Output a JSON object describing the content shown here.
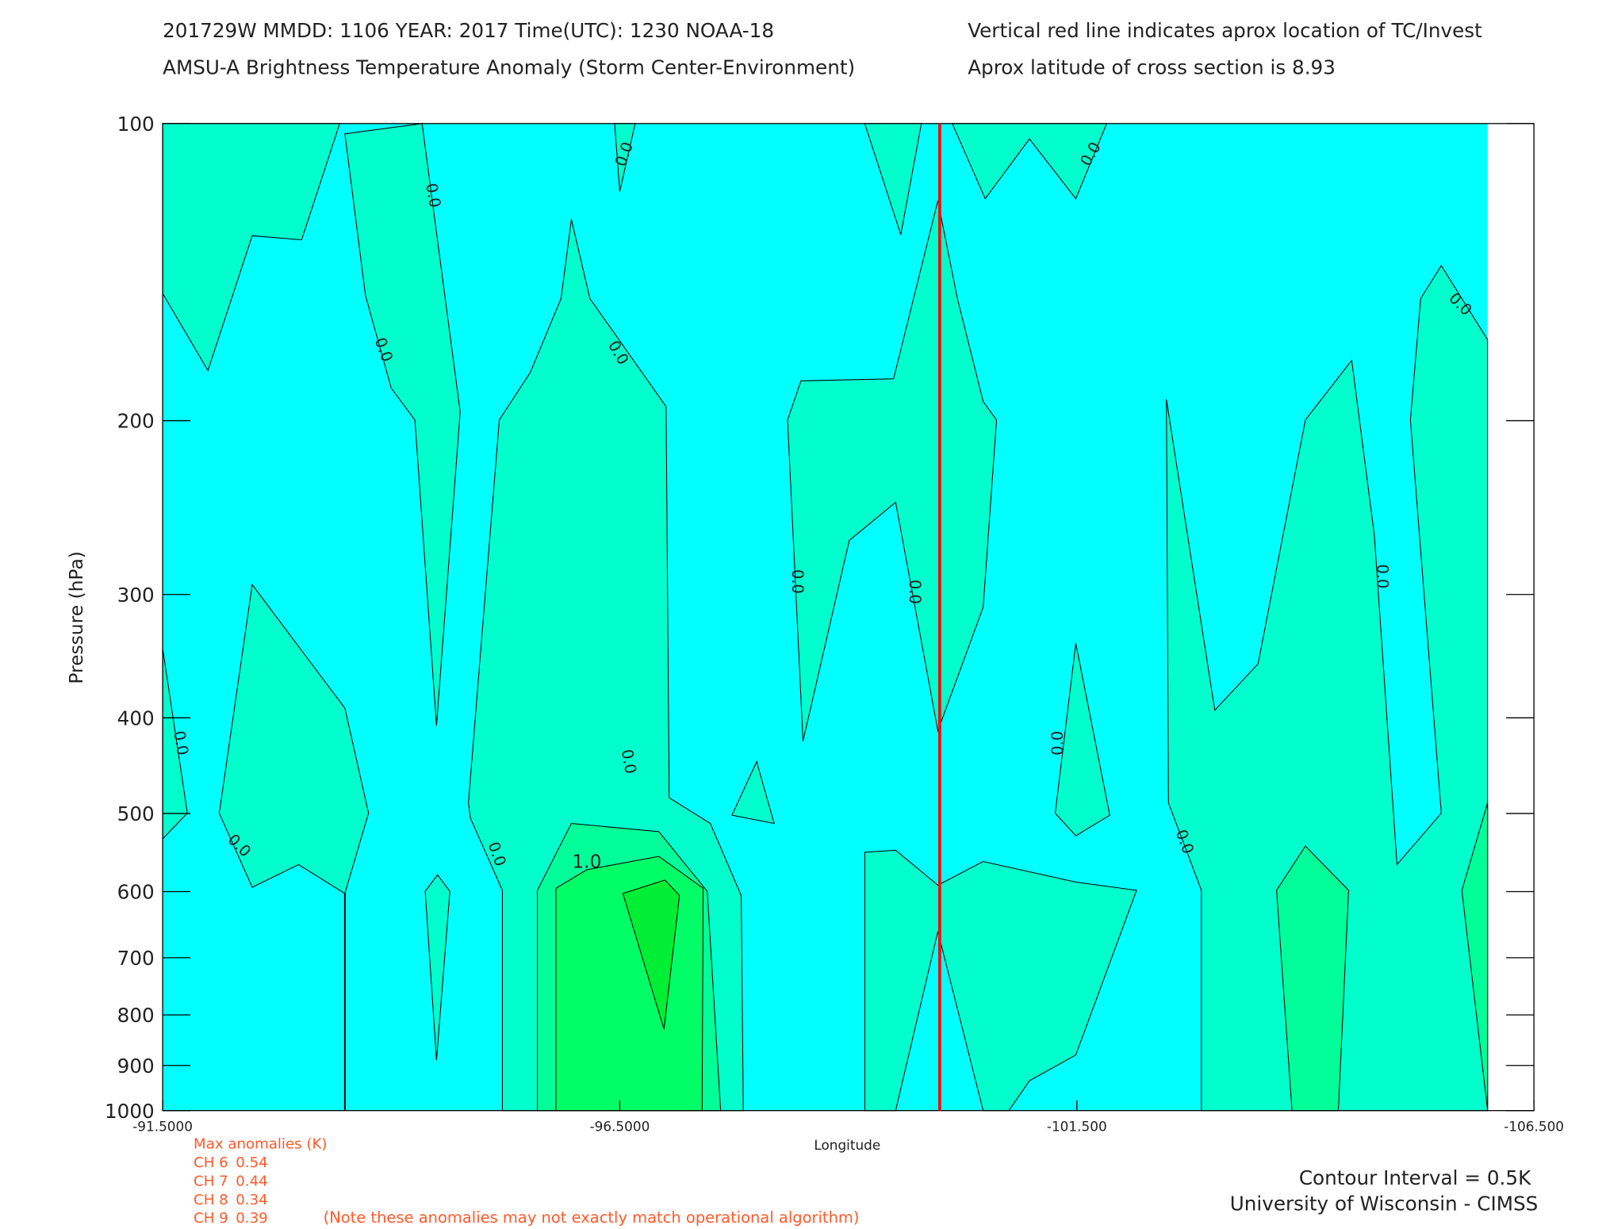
{
  "chart_data": {
    "type": "contour",
    "title_lines": [
      "201729W  MMDD: 1106 YEAR: 2017 Time(UTC): 1230 NOAA-18",
      "AMSU-A Brightness Temperature Anomaly (Storm Center-Environment)"
    ],
    "note_lines": [
      "Vertical red line indicates aprox location of TC/Invest",
      "Aprox latitude of cross section is 8.93"
    ],
    "x_label": "Longitude",
    "y_label": "Pressure (hPa)",
    "xlim": [
      -91.5,
      -106.5
    ],
    "xticks": [
      {
        "value": -91.5,
        "label": "-91.5000"
      },
      {
        "value": -96.5,
        "label": "-96.5000"
      },
      {
        "value": -101.5,
        "label": "-101.500"
      },
      {
        "value": -106.5,
        "label": "-106.500"
      }
    ],
    "ylim": [
      100,
      1000
    ],
    "yscale": "log",
    "y_inverted": true,
    "yticks": [
      100,
      200,
      300,
      400,
      500,
      600,
      700,
      800,
      900,
      1000
    ],
    "tc_longitude": -100.0,
    "tc_line_color": "#ee1111",
    "contour_labels": [
      "0.0",
      "0.0",
      "0.0",
      "0.0",
      "0.0",
      "0.0",
      "0.0",
      "0.0",
      "0.0",
      "0.0",
      "0.0",
      "0.0",
      "0.0",
      "0.0",
      "0.0",
      "1.0"
    ],
    "max_anomalies": {
      "title": "Max anomalies (K)",
      "channels": [
        {
          "channel": "CH 6",
          "value": 0.54
        },
        {
          "channel": "CH 7",
          "value": 0.44
        },
        {
          "channel": "CH 8",
          "value": 0.34
        },
        {
          "channel": "CH 9",
          "value": 0.39
        }
      ],
      "note": "(Note these anomalies may not exactly match operational algorithm)"
    },
    "contour_interval": "Contour Interval = 0.5K",
    "credit": "University of Wisconsin - CIMSS"
  }
}
